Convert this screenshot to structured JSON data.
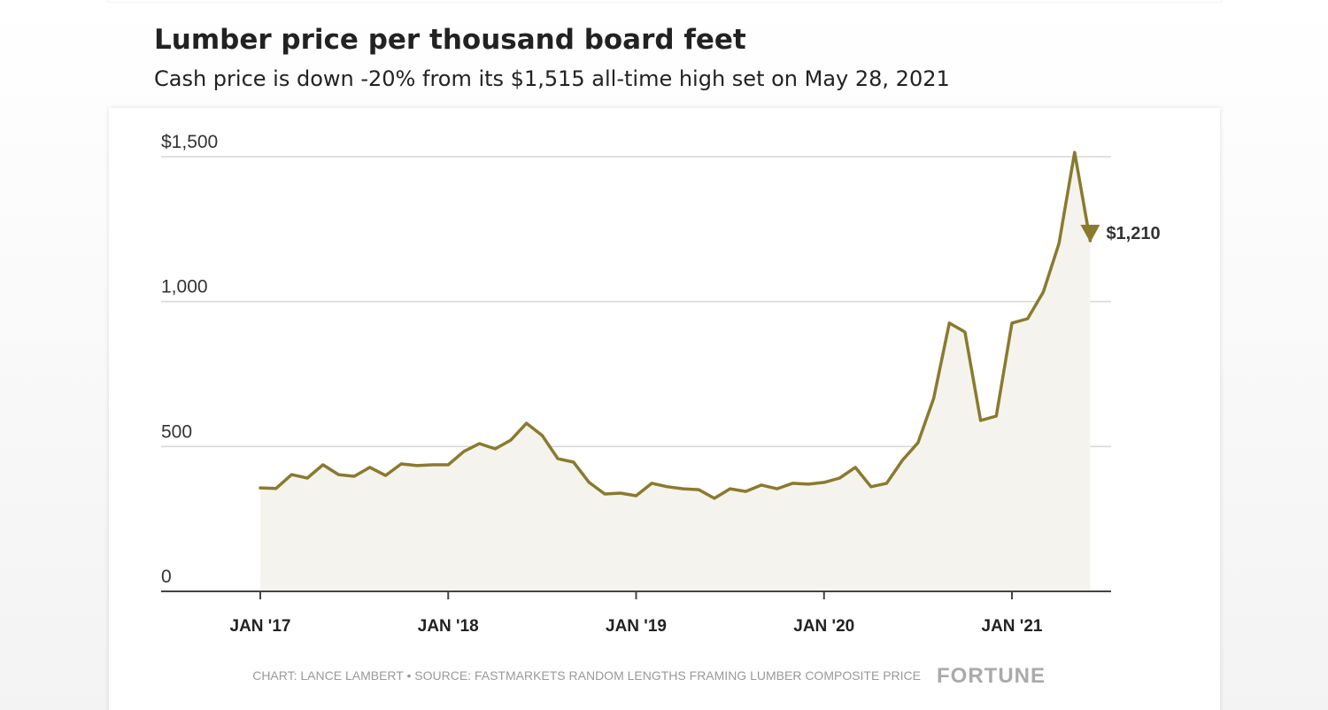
{
  "chart_data": {
    "type": "line",
    "title": "Lumber price per thousand board feet",
    "subtitle": "Cash price is down -20% from its $1,515 all-time high set on May 28, 2021",
    "source": "CHART: LANCE LAMBERT • SOURCE: FASTMARKETS RANDOM LENGTHS FRAMING LUMBER COMPOSITE PRICE",
    "brand": "FORTUNE",
    "x": [
      "2017-01",
      "2017-02",
      "2017-03",
      "2017-04",
      "2017-05",
      "2017-06",
      "2017-07",
      "2017-08",
      "2017-09",
      "2017-10",
      "2017-11",
      "2017-12",
      "2018-01",
      "2018-02",
      "2018-03",
      "2018-04",
      "2018-05",
      "2018-06",
      "2018-07",
      "2018-08",
      "2018-09",
      "2018-10",
      "2018-11",
      "2018-12",
      "2019-01",
      "2019-02",
      "2019-03",
      "2019-04",
      "2019-05",
      "2019-06",
      "2019-07",
      "2019-08",
      "2019-09",
      "2019-10",
      "2019-11",
      "2019-12",
      "2020-01",
      "2020-02",
      "2020-03",
      "2020-04",
      "2020-05",
      "2020-06",
      "2020-07",
      "2020-08",
      "2020-09",
      "2020-10",
      "2020-11",
      "2020-12",
      "2021-01",
      "2021-02",
      "2021-03",
      "2021-04",
      "2021-05",
      "2021-06"
    ],
    "series": [
      {
        "name": "Lumber price",
        "color": "#8a7a2e",
        "values": [
          357,
          355,
          403,
          391,
          437,
          403,
          397,
          428,
          400,
          440,
          434,
          437,
          437,
          483,
          510,
          492,
          522,
          580,
          538,
          458,
          446,
          376,
          336,
          339,
          330,
          373,
          361,
          354,
          351,
          321,
          354,
          345,
          367,
          354,
          373,
          370,
          376,
          391,
          428,
          361,
          373,
          452,
          513,
          666,
          926,
          895,
          590,
          605,
          926,
          941,
          1033,
          1200,
          1515,
          1210
        ]
      }
    ],
    "annotation": {
      "label": "$1,210",
      "value": 1210
    },
    "ylim": [
      0,
      1500
    ],
    "yticks": [
      {
        "value": 0,
        "label": "0"
      },
      {
        "value": 500,
        "label": "500"
      },
      {
        "value": 1000,
        "label": "1,000"
      },
      {
        "value": 1500,
        "label": "$1,500"
      }
    ],
    "xticks": [
      {
        "value": "2017-01",
        "label": "JAN '17"
      },
      {
        "value": "2018-01",
        "label": "JAN '18"
      },
      {
        "value": "2019-01",
        "label": "JAN '19"
      },
      {
        "value": "2020-01",
        "label": "JAN '20"
      },
      {
        "value": "2021-01",
        "label": "JAN '21"
      }
    ],
    "grid": true,
    "fill_color": "#f4f3ee"
  }
}
